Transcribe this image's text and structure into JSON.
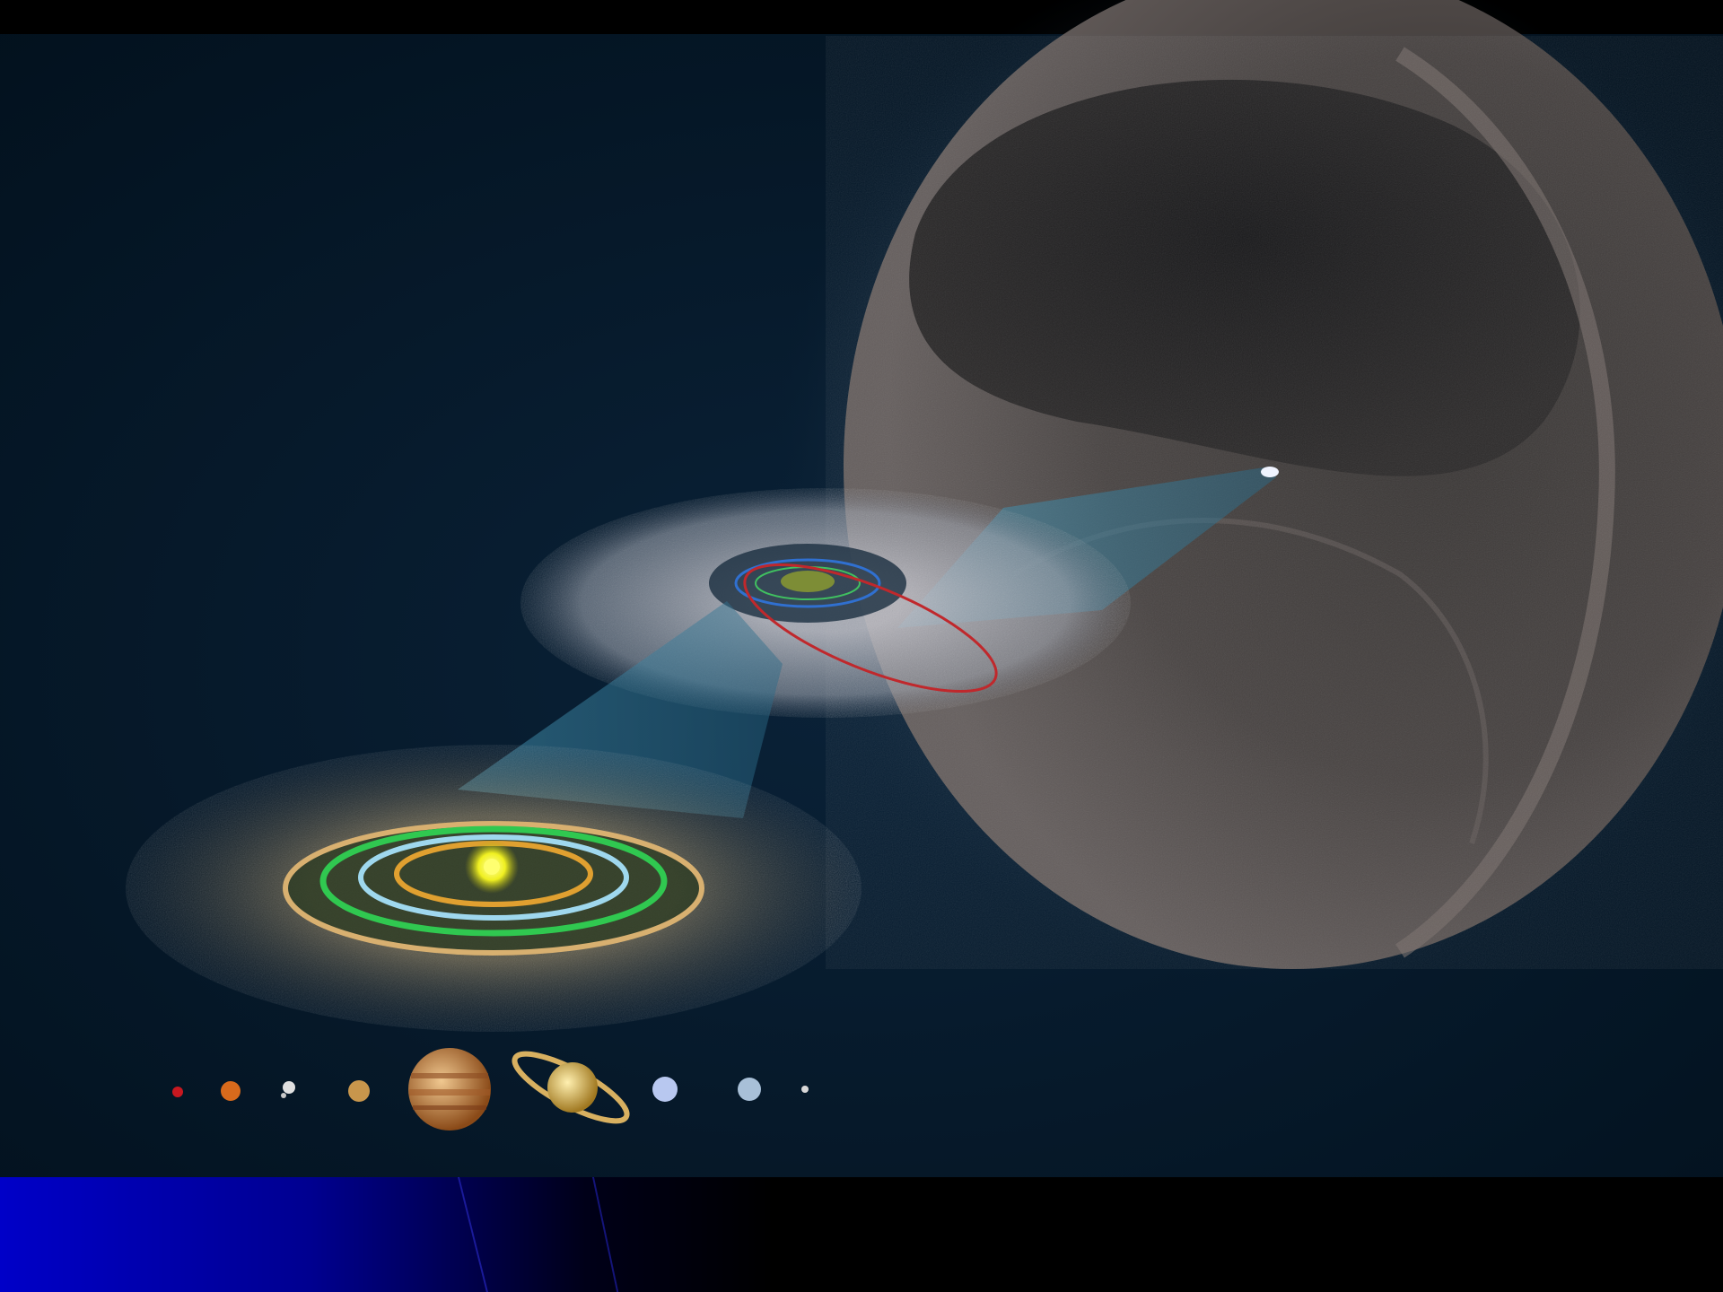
{
  "slide": {
    "illustration": {
      "subject": "solar-system-kuiper-belt-oort-cloud",
      "colors": {
        "space": "#061a2c",
        "oort_cloud_shell": "#5a5656",
        "kuiper_belt": "#b8b8c0",
        "inner_belt_dust": "#a08a60",
        "sun": "#ffff40",
        "orbit_inner": "#e0a030",
        "orbit_light_blue": "#9fd8ee",
        "orbit_green": "#30c850",
        "orbit_outer": "#d8b070",
        "comet_orbit": "#c0282c",
        "zoom_cone": "#3a8aa8"
      },
      "planets": [
        {
          "name": "mercury",
          "color": "#c81820"
        },
        {
          "name": "venus",
          "color": "#d86a1c"
        },
        {
          "name": "earth-moon",
          "color": "#e0e0e0"
        },
        {
          "name": "mars",
          "color": "#c8964c"
        },
        {
          "name": "jupiter",
          "color": "#c87830"
        },
        {
          "name": "saturn",
          "color": "#d8b060"
        },
        {
          "name": "uranus",
          "color": "#b8c8f0"
        },
        {
          "name": "neptune",
          "color": "#a8c0d8"
        },
        {
          "name": "pluto",
          "color": "#d8d8d8"
        }
      ]
    },
    "footer": {
      "gradient_start": "#0000c8",
      "gradient_end": "#000000"
    }
  }
}
